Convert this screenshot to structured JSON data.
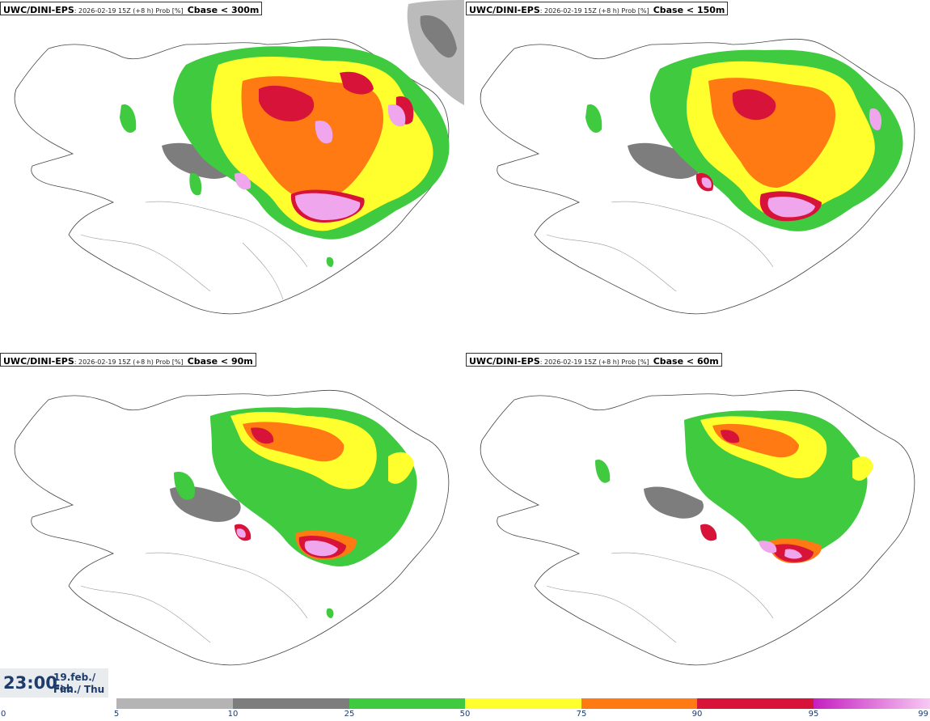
{
  "model": "UWC/DINI-EPS",
  "run_info": "2026-02-19 15Z (+8 h) Prob [%]",
  "panels": [
    {
      "variable": "Cbase < 300m"
    },
    {
      "variable": "Cbase < 150m"
    },
    {
      "variable": "Cbase < 90m"
    },
    {
      "variable": "Cbase < 60m"
    }
  ],
  "valid_time": {
    "time": "23:00",
    "date_line": "19.feb./ Feb",
    "day_line": "Fim./ Thu"
  },
  "colorbar": {
    "ticks": [
      "0",
      "5",
      "10",
      "25",
      "50",
      "75",
      "90",
      "95",
      "99"
    ],
    "colors": {
      "c5_10": "#b4b4b4",
      "c10_25": "#7d7d7d",
      "c25_50": "#3fca3f",
      "c50_75": "#ffff2e",
      "c75_90": "#ff7a12",
      "c90_95": "#d8133a",
      "c95_99_start": "#c51fc0",
      "c95_99_end": "#f7c9f3"
    }
  }
}
